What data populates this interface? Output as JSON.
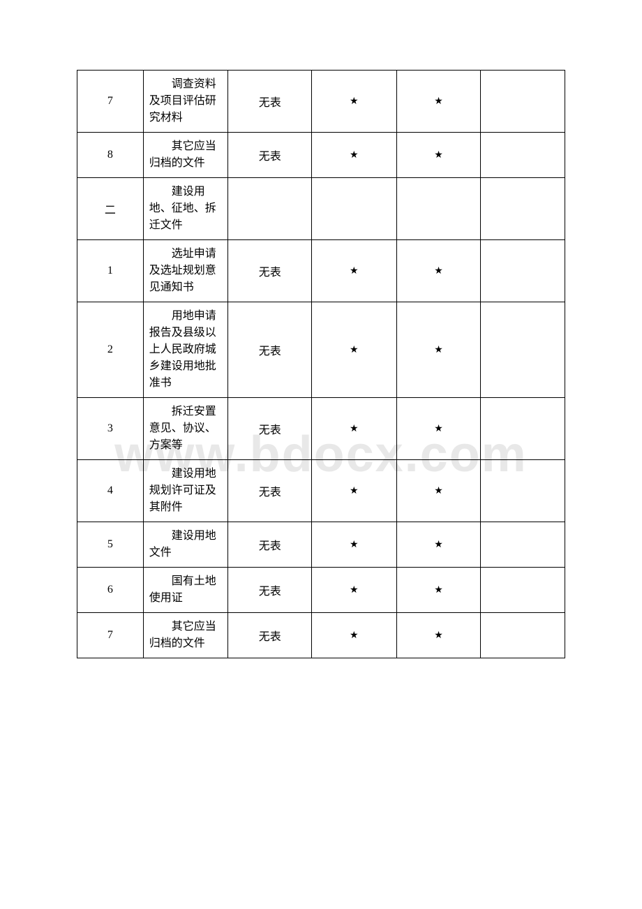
{
  "watermark": "www.bdocx.com",
  "table": {
    "rows": [
      {
        "num": "7",
        "desc": "调查资料及项目评估研究材料",
        "c3": "无表",
        "c4": "★",
        "c5": "★",
        "c6": ""
      },
      {
        "num": "8",
        "desc": "其它应当归档的文件",
        "c3": "无表",
        "c4": "★",
        "c5": "★",
        "c6": ""
      },
      {
        "num": "二",
        "desc": "建设用地、征地、拆迁文件",
        "c3": "",
        "c4": "",
        "c5": "",
        "c6": "",
        "is_section": true
      },
      {
        "num": "1",
        "desc": "选址申请及选址规划意见通知书",
        "c3": "无表",
        "c4": "★",
        "c5": "★",
        "c6": ""
      },
      {
        "num": "2",
        "desc": "用地申请报告及县级以上人民政府城乡建设用地批准书",
        "c3": "无表",
        "c4": "★",
        "c5": "★",
        "c6": ""
      },
      {
        "num": "3",
        "desc": "拆迁安置意见、协议、方案等",
        "c3": "无表",
        "c4": "★",
        "c5": "★",
        "c6": ""
      },
      {
        "num": "4",
        "desc": "建设用地规划许可证及其附件",
        "c3": "无表",
        "c4": "★",
        "c5": "★",
        "c6": ""
      },
      {
        "num": "5",
        "desc": "建设用地文件",
        "c3": "无表",
        "c4": "★",
        "c5": "★",
        "c6": ""
      },
      {
        "num": "6",
        "desc": "国有土地使用证",
        "c3": "无表",
        "c4": "★",
        "c5": "★",
        "c6": ""
      },
      {
        "num": "7",
        "desc": "其它应当归档的文件",
        "c3": "无表",
        "c4": "★",
        "c5": "★",
        "c6": ""
      }
    ]
  }
}
